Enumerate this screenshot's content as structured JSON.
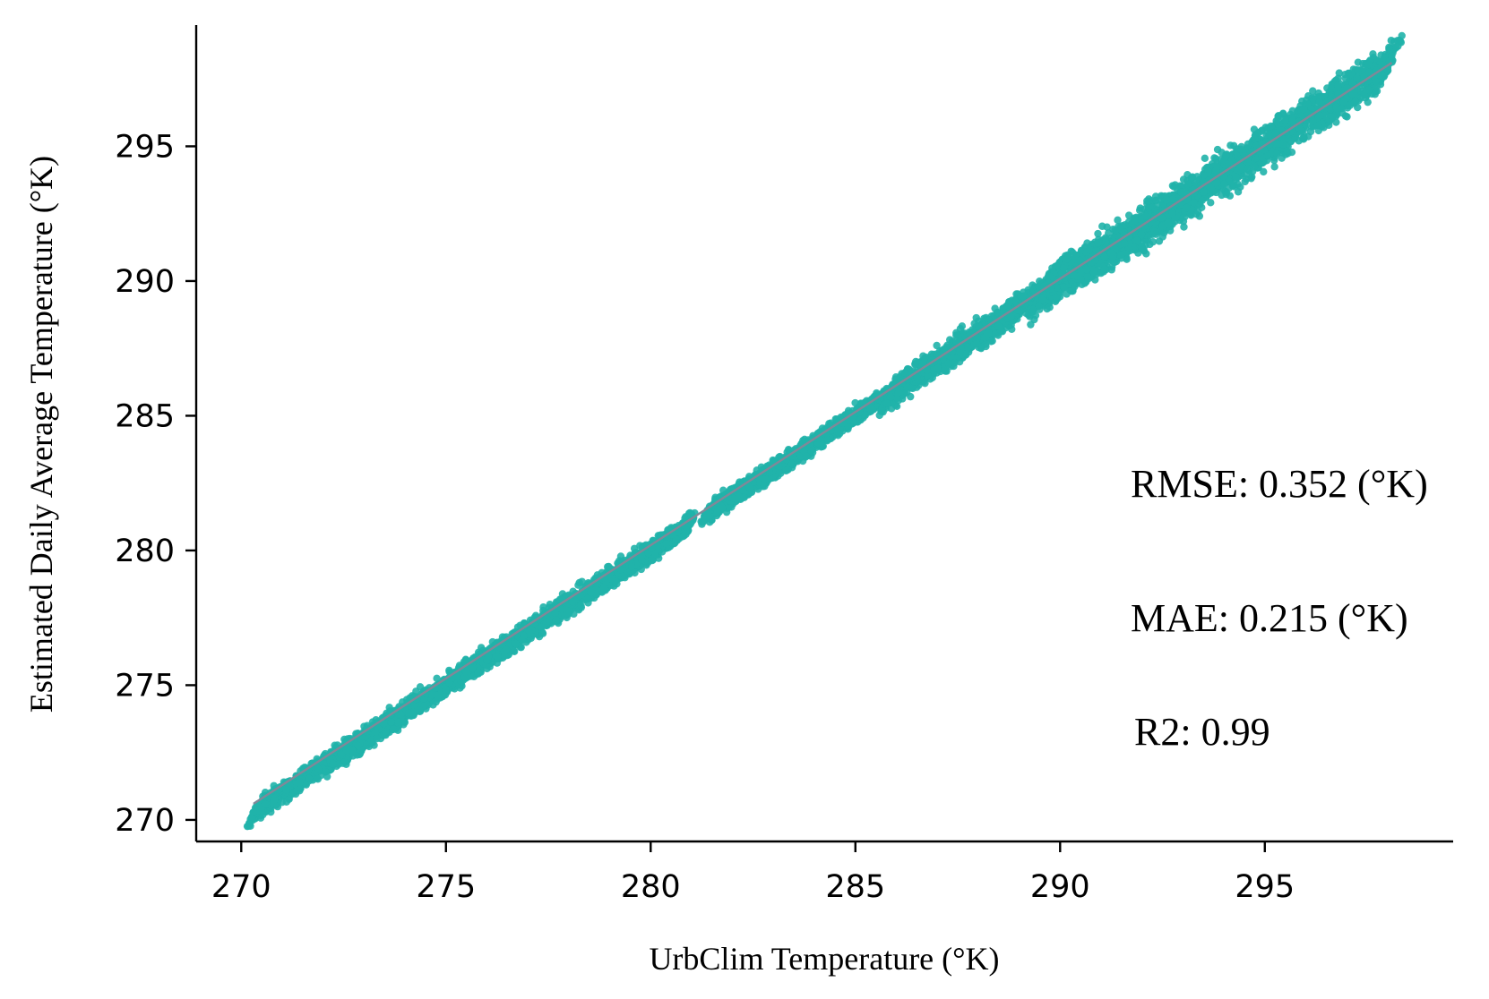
{
  "chart_data": {
    "type": "scatter",
    "title": "",
    "xlabel": "UrbClim Temperature (°K)",
    "ylabel": "Estimated Daily Average Temperature (°K)",
    "xlim": [
      268.9,
      299.6
    ],
    "ylim": [
      269.2,
      299.5
    ],
    "x_ticks": [
      270,
      275,
      280,
      285,
      290,
      295
    ],
    "y_ticks": [
      270,
      275,
      280,
      285,
      290,
      295
    ],
    "grid": false,
    "legend": "none",
    "point_color": "#20b2aa",
    "line_color": "#808898",
    "reference_line": {
      "x": [
        270.3,
        298.1
      ],
      "y": [
        270.6,
        298.1
      ]
    },
    "series_segments": [
      {
        "x_range": [
          270.3,
          281.0
        ],
        "spread": 0.6
      },
      {
        "x_range": [
          281.3,
          286.0
        ],
        "spread": 0.5
      },
      {
        "x_range": [
          285.8,
          289.5
        ],
        "spread": 0.8
      },
      {
        "x_range": [
          289.5,
          298.1
        ],
        "spread": 1.2
      }
    ],
    "annotations": [
      "RMSE: 0.352 (°K)",
      "MAE: 0.215 (°K)",
      "R2: 0.99"
    ]
  }
}
